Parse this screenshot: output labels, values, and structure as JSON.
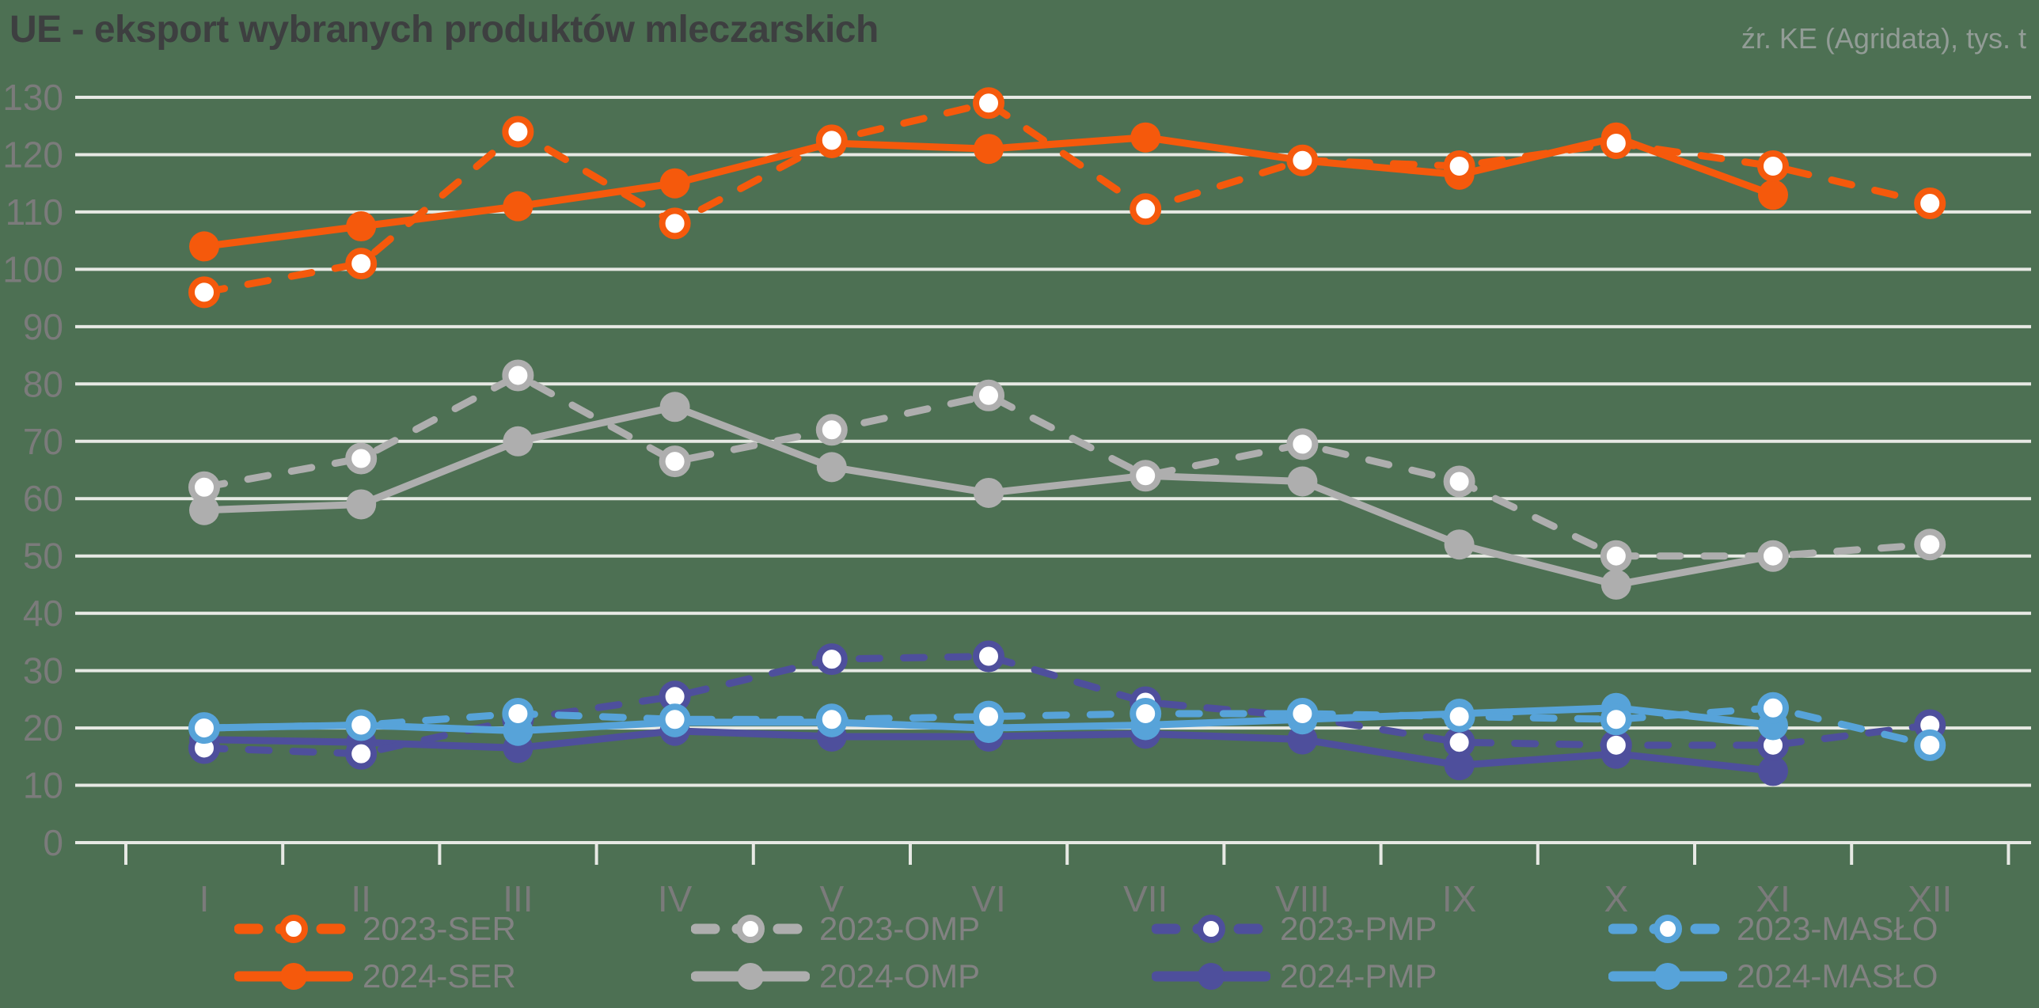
{
  "header": {
    "title": "UE - eksport wybranych produktów mleczarskich",
    "source": "źr. KE (Agridata), tys. t"
  },
  "colors": {
    "background": "#4d7053",
    "grid": "#e7e9e4",
    "axis_text": "#7b7b7b",
    "title_text": "#3d3f40",
    "source_text": "#929c96",
    "legend_text": "#828282",
    "open_marker_fill": "#ffffff",
    "ser": "#f5590c",
    "omp": "#aeaeae",
    "pmp": "#4e4f9c",
    "maslo": "#57a3d9"
  },
  "chart_data": {
    "type": "line",
    "title": "UE - eksport wybranych produktów mleczarskich",
    "unit": "tys. t",
    "xlabel": "",
    "ylabel": "",
    "ylim": [
      0,
      130
    ],
    "ytick_step": 10,
    "grid": true,
    "legend_position": "bottom",
    "categories": [
      "I",
      "II",
      "III",
      "IV",
      "V",
      "VI",
      "VII",
      "VIII",
      "IX",
      "X",
      "XI",
      "XII"
    ],
    "draw_order": [
      3,
      2,
      1,
      0,
      5,
      4,
      7,
      6
    ],
    "series": [
      {
        "name": "2023-SER",
        "color_key": "ser",
        "style": "dashed",
        "marker": "open",
        "values": [
          96,
          101,
          124,
          108,
          122.5,
          129,
          110.5,
          119,
          118,
          122,
          118,
          111.5
        ]
      },
      {
        "name": "2024-SER",
        "color_key": "ser",
        "style": "solid",
        "marker": "filled",
        "values": [
          104,
          107.5,
          111,
          115,
          122,
          121,
          123,
          119,
          116.5,
          123,
          113
        ]
      },
      {
        "name": "2023-OMP",
        "color_key": "omp",
        "style": "dashed",
        "marker": "open",
        "values": [
          62,
          67,
          81.5,
          66.5,
          72,
          78,
          64,
          69.5,
          63,
          50,
          50,
          52
        ]
      },
      {
        "name": "2024-OMP",
        "color_key": "omp",
        "style": "solid",
        "marker": "filled",
        "values": [
          58,
          59,
          70,
          76,
          65.5,
          61,
          64,
          63,
          52,
          45,
          50
        ]
      },
      {
        "name": "2023-PMP",
        "color_key": "pmp",
        "style": "dashed",
        "marker": "open",
        "values": [
          16.5,
          15.5,
          21.5,
          25.5,
          32,
          32.5,
          24.5,
          22,
          17.5,
          17,
          17,
          20.5
        ]
      },
      {
        "name": "2024-PMP",
        "color_key": "pmp",
        "style": "solid",
        "marker": "filled",
        "values": [
          18,
          17.5,
          16.5,
          19.5,
          18.5,
          18.5,
          19,
          18,
          13.5,
          15.5,
          12.5
        ]
      },
      {
        "name": "2023-MASŁO",
        "color_key": "maslo",
        "style": "dashed",
        "marker": "open",
        "values": [
          20,
          20.5,
          22.5,
          21.5,
          21.5,
          22,
          22.5,
          22.5,
          22,
          21.5,
          23.5,
          17
        ]
      },
      {
        "name": "2024-MASŁO",
        "color_key": "maslo",
        "style": "solid",
        "marker": "filled",
        "values": [
          20,
          20.5,
          19.5,
          21,
          21,
          20,
          20.5,
          21.5,
          22.5,
          23.5,
          20.5
        ]
      }
    ]
  }
}
